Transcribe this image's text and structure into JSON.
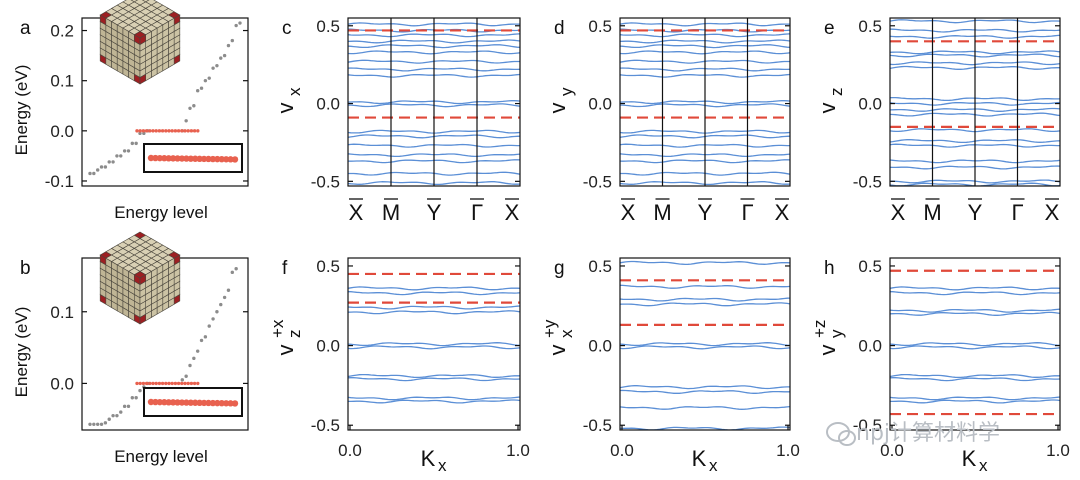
{
  "colors": {
    "band": "#5b8fd6",
    "dashed": "#e0493a",
    "dot_gray": "#8c8c8c",
    "dot_red": "#e8614f",
    "frame": "#111111"
  },
  "watermark": {
    "icon": "wechat-icon",
    "text": "npj计算材料学"
  },
  "chart_data": [
    {
      "id": "a",
      "type": "scatter",
      "letter": "a",
      "ylabel": "Energy (eV)",
      "xlabel": "Energy level",
      "ylim": [
        -0.11,
        0.225
      ],
      "yticks": [
        -0.1,
        0.0,
        0.1,
        0.2
      ],
      "ytick_labels": [
        "-0.1",
        "0.0",
        "0.1",
        "0.2"
      ],
      "gray_points": [
        [
          1,
          -0.085
        ],
        [
          2,
          -0.085
        ],
        [
          3,
          -0.078
        ],
        [
          4,
          -0.072
        ],
        [
          5,
          -0.072
        ],
        [
          6,
          -0.062
        ],
        [
          7,
          -0.062
        ],
        [
          8,
          -0.05
        ],
        [
          9,
          -0.05
        ],
        [
          10,
          -0.04
        ],
        [
          11,
          -0.04
        ],
        [
          12,
          -0.025
        ],
        [
          13,
          -0.025
        ],
        [
          14,
          -0.005
        ],
        [
          15,
          -0.005
        ],
        [
          16,
          0.0
        ],
        [
          17,
          0.0
        ],
        [
          18,
          0.02
        ],
        [
          19,
          0.045
        ],
        [
          20,
          0.05
        ],
        [
          21,
          0.08
        ],
        [
          22,
          0.085
        ],
        [
          23,
          0.1
        ],
        [
          24,
          0.105
        ],
        [
          25,
          0.125
        ],
        [
          26,
          0.13
        ],
        [
          27,
          0.145
        ],
        [
          28,
          0.15
        ],
        [
          29,
          0.17
        ],
        [
          30,
          0.18
        ],
        [
          31,
          0.21
        ],
        [
          32,
          0.215
        ]
      ],
      "red_points": {
        "count": 20,
        "energy": 0.0
      }
    },
    {
      "id": "b",
      "type": "scatter",
      "letter": "b",
      "ylabel": "Energy (eV)",
      "xlabel": "Energy level",
      "ylim": [
        -0.065,
        0.175
      ],
      "yticks": [
        0.0,
        0.1
      ],
      "ytick_labels": [
        "0.0",
        "0.1"
      ],
      "gray_points": [
        [
          1,
          -0.057
        ],
        [
          2,
          -0.057
        ],
        [
          3,
          -0.057
        ],
        [
          4,
          -0.057
        ],
        [
          5,
          -0.055
        ],
        [
          6,
          -0.05
        ],
        [
          7,
          -0.045
        ],
        [
          8,
          -0.045
        ],
        [
          9,
          -0.04
        ],
        [
          10,
          -0.032
        ],
        [
          11,
          -0.032
        ],
        [
          12,
          -0.02
        ],
        [
          13,
          -0.02
        ],
        [
          14,
          -0.01
        ],
        [
          15,
          -0.005
        ],
        [
          16,
          0.0
        ],
        [
          17,
          0.005
        ],
        [
          18,
          0.01
        ],
        [
          19,
          0.025
        ],
        [
          20,
          0.035
        ],
        [
          21,
          0.045
        ],
        [
          22,
          0.06
        ],
        [
          23,
          0.065
        ],
        [
          24,
          0.08
        ],
        [
          25,
          0.09
        ],
        [
          26,
          0.1
        ],
        [
          27,
          0.11
        ],
        [
          28,
          0.12
        ],
        [
          29,
          0.13
        ],
        [
          30,
          0.155
        ],
        [
          31,
          0.16
        ]
      ],
      "red_points": {
        "count": 20,
        "energy": 0.0
      }
    },
    {
      "id": "c",
      "type": "line",
      "letter": "c",
      "ylabel_main": "v",
      "ylabel_sub": "x",
      "ylabel_sup": "",
      "ylim": [
        -0.53,
        0.55
      ],
      "yticks": [
        -0.5,
        0.0,
        0.5
      ],
      "ytick_labels": [
        "-0.5",
        "0.0",
        "0.5"
      ],
      "xmode": "kpath",
      "kpoints": [
        "X",
        "M",
        "Y",
        "Γ",
        "X"
      ],
      "bands": [
        0.51,
        0.47,
        0.44,
        0.4,
        0.37,
        0.33,
        0.27,
        0.22,
        0.18,
        0.01,
        -0.01,
        -0.18,
        -0.21,
        -0.27,
        -0.33,
        -0.37,
        -0.45,
        -0.51
      ],
      "dashed": [
        0.47,
        -0.09
      ]
    },
    {
      "id": "d",
      "type": "line",
      "letter": "d",
      "ylabel_main": "v",
      "ylabel_sub": "y",
      "ylabel_sup": "",
      "ylim": [
        -0.53,
        0.55
      ],
      "yticks": [
        -0.5,
        0.0,
        0.5
      ],
      "ytick_labels": [
        "-0.5",
        "0.0",
        "0.5"
      ],
      "xmode": "kpath",
      "kpoints": [
        "X",
        "M",
        "Y",
        "Γ",
        "X"
      ],
      "bands": [
        0.51,
        0.47,
        0.44,
        0.4,
        0.37,
        0.33,
        0.27,
        0.22,
        0.18,
        0.01,
        -0.01,
        -0.18,
        -0.21,
        -0.27,
        -0.33,
        -0.37,
        -0.45,
        -0.51
      ],
      "dashed": [
        0.47,
        -0.09
      ]
    },
    {
      "id": "e",
      "type": "line",
      "letter": "e",
      "ylabel_main": "v",
      "ylabel_sub": "z",
      "ylabel_sup": "",
      "ylim": [
        -0.53,
        0.55
      ],
      "yticks": [
        -0.5,
        0.0,
        0.5
      ],
      "ytick_labels": [
        "-0.5",
        "0.0",
        "0.5"
      ],
      "xmode": "kpath",
      "kpoints": [
        "X",
        "M",
        "Y",
        "Γ",
        "X"
      ],
      "bands": [
        0.53,
        0.47,
        0.43,
        0.33,
        0.31,
        0.26,
        0.23,
        0.03,
        0.0,
        -0.04,
        -0.07,
        -0.17,
        -0.24,
        -0.27,
        -0.37,
        -0.41,
        -0.5,
        -0.52
      ],
      "dashed": [
        0.4,
        -0.15
      ]
    },
    {
      "id": "f",
      "type": "line",
      "letter": "f",
      "ylabel_main": "v",
      "ylabel_sub": "z",
      "ylabel_sup": "+x",
      "ylim": [
        -0.53,
        0.55
      ],
      "yticks": [
        -0.5,
        0.0,
        0.5
      ],
      "ytick_labels": [
        "-0.5",
        "0.0",
        "0.5"
      ],
      "xmode": "kx",
      "xlabel_main": "K",
      "xlabel_sub": "x",
      "xticks": [
        0.0,
        1.0
      ],
      "xtick_labels": [
        "0.0",
        "1.0"
      ],
      "bands": [
        0.36,
        0.33,
        0.24,
        0.21,
        0.01,
        -0.01,
        -0.19,
        -0.21,
        -0.33,
        -0.35
      ],
      "dashed": [
        0.45,
        0.27
      ]
    },
    {
      "id": "g",
      "type": "line",
      "letter": "g",
      "ylabel_main": "v",
      "ylabel_sub": "x",
      "ylabel_sup": "+y",
      "ylim": [
        -0.53,
        0.55
      ],
      "yticks": [
        -0.5,
        0.0,
        0.5
      ],
      "ytick_labels": [
        "-0.5",
        "0.0",
        "0.5"
      ],
      "xmode": "kx",
      "xlabel_main": "K",
      "xlabel_sub": "x",
      "xticks": [
        0.0,
        1.0
      ],
      "xtick_labels": [
        "0.0",
        "1.0"
      ],
      "bands": [
        0.52,
        0.37,
        0.29,
        0.26,
        0.01,
        -0.01,
        -0.26,
        -0.29,
        -0.39,
        -0.52
      ],
      "dashed": [
        0.41,
        0.13
      ]
    },
    {
      "id": "h",
      "type": "line",
      "letter": "h",
      "ylabel_main": "v",
      "ylabel_sub": "y",
      "ylabel_sup": "+z",
      "ylim": [
        -0.53,
        0.55
      ],
      "yticks": [
        -0.5,
        0.0,
        0.5
      ],
      "ytick_labels": [
        "-0.5",
        "0.0",
        "0.5"
      ],
      "xmode": "kx",
      "xlabel_main": "K",
      "xlabel_sub": "x",
      "xticks": [
        0.0,
        1.0
      ],
      "xtick_labels": [
        "0.0",
        "1.0"
      ],
      "bands": [
        0.36,
        0.33,
        0.22,
        0.2,
        0.01,
        -0.01,
        -0.19,
        -0.21,
        -0.33,
        -0.35
      ],
      "dashed": [
        0.47,
        -0.43
      ]
    }
  ]
}
